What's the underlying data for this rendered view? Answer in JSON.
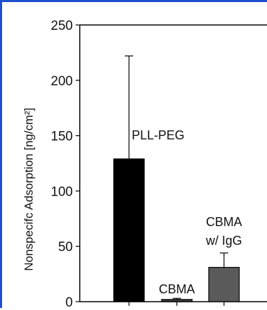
{
  "chart_data": {
    "type": "bar",
    "title": "",
    "xlabel": "",
    "ylabel": "Nonspecifc Adsorption [ng/cm²]",
    "ylim": [
      0,
      250
    ],
    "yticks": [
      0,
      50,
      100,
      150,
      200,
      250
    ],
    "grid": false,
    "categories": [
      "PLL-PEG",
      "CBMA",
      "CBMA w/ IgG"
    ],
    "values": [
      129,
      2,
      31
    ],
    "error_upper": [
      93,
      1,
      13
    ],
    "bar_labels": [
      [
        "PLL-PEG"
      ],
      [
        "CBMA"
      ],
      [
        "CBMA",
        "w/ IgG"
      ]
    ],
    "colors": [
      "#000000",
      "#3d3d3d",
      "#5a5a5a"
    ]
  }
}
